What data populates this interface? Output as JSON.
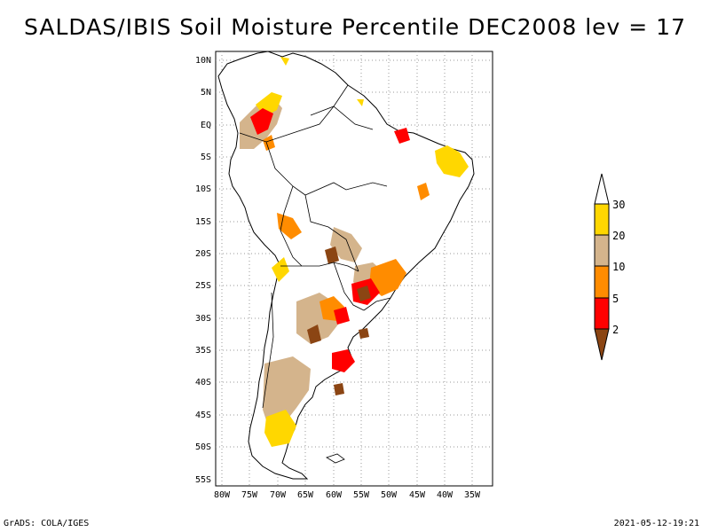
{
  "map": {
    "title": "SALDAS/IBIS Soil Moisture Percentile DEC2008 lev = 17",
    "lat_labels": [
      "10N",
      "5N",
      "EQ",
      "5S",
      "10S",
      "15S",
      "20S",
      "25S",
      "30S",
      "35S",
      "40S",
      "45S",
      "50S",
      "55S"
    ],
    "lon_labels": [
      "80W",
      "75W",
      "70W",
      "65W",
      "60W",
      "55W",
      "50W",
      "45W",
      "40W",
      "35W"
    ],
    "region": "South America"
  },
  "colorbar": {
    "labels": [
      "30",
      "20",
      "10",
      "5",
      "2"
    ],
    "colors": {
      "gt30": "#ffffff",
      "20_30": "#ffd700",
      "10_20": "#d4b48c",
      "5_10": "#ff8c00",
      "2_5": "#ff0000",
      "lt2": "#8b4513"
    }
  },
  "footer": {
    "left": "GrADS: COLA/IGES",
    "right": "2021-05-12-19:21"
  }
}
